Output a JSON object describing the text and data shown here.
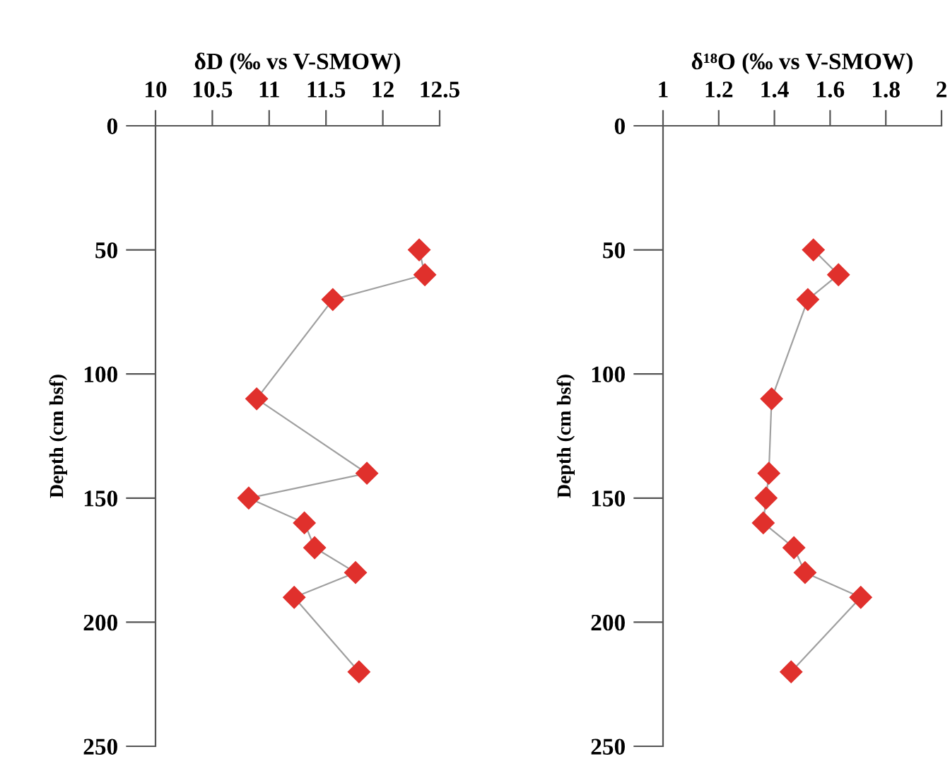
{
  "chart_data": [
    {
      "type": "line",
      "xlabel": "δD (‰ vs V-SMOW)",
      "ylabel": "Depth (cm bsf)",
      "marker": "diamond",
      "line_style": "solid",
      "grid": false,
      "legend": false,
      "xlim": [
        10,
        12.5
      ],
      "xticks": [
        10,
        10.5,
        11,
        11.5,
        12,
        12.5
      ],
      "ylim": [
        250,
        0
      ],
      "yticks": [
        0,
        50,
        100,
        150,
        200,
        250
      ],
      "series": [
        {
          "color": "#e0302c",
          "x": [
            12.32,
            12.37,
            11.56,
            10.89,
            11.86,
            10.82,
            11.31,
            11.4,
            11.76,
            11.22,
            11.79
          ],
          "values": [
            50,
            60,
            70,
            110,
            140,
            150,
            160,
            170,
            180,
            190,
            220
          ]
        }
      ]
    },
    {
      "type": "line",
      "xlabel": "δ¹⁸O (‰ vs V-SMOW)",
      "ylabel": "Depth (cm bsf)",
      "marker": "diamond",
      "line_style": "solid",
      "grid": false,
      "legend": false,
      "xlim": [
        1,
        2
      ],
      "xticks": [
        1,
        1.2,
        1.4,
        1.6,
        1.8,
        2
      ],
      "ylim": [
        250,
        0
      ],
      "yticks": [
        0,
        50,
        100,
        150,
        200,
        250
      ],
      "series": [
        {
          "color": "#e0302c",
          "x": [
            1.54,
            1.63,
            1.52,
            1.39,
            1.38,
            1.37,
            1.36,
            1.47,
            1.51,
            1.71,
            1.46
          ],
          "values": [
            50,
            60,
            70,
            110,
            140,
            150,
            160,
            170,
            180,
            190,
            220
          ]
        }
      ]
    }
  ]
}
